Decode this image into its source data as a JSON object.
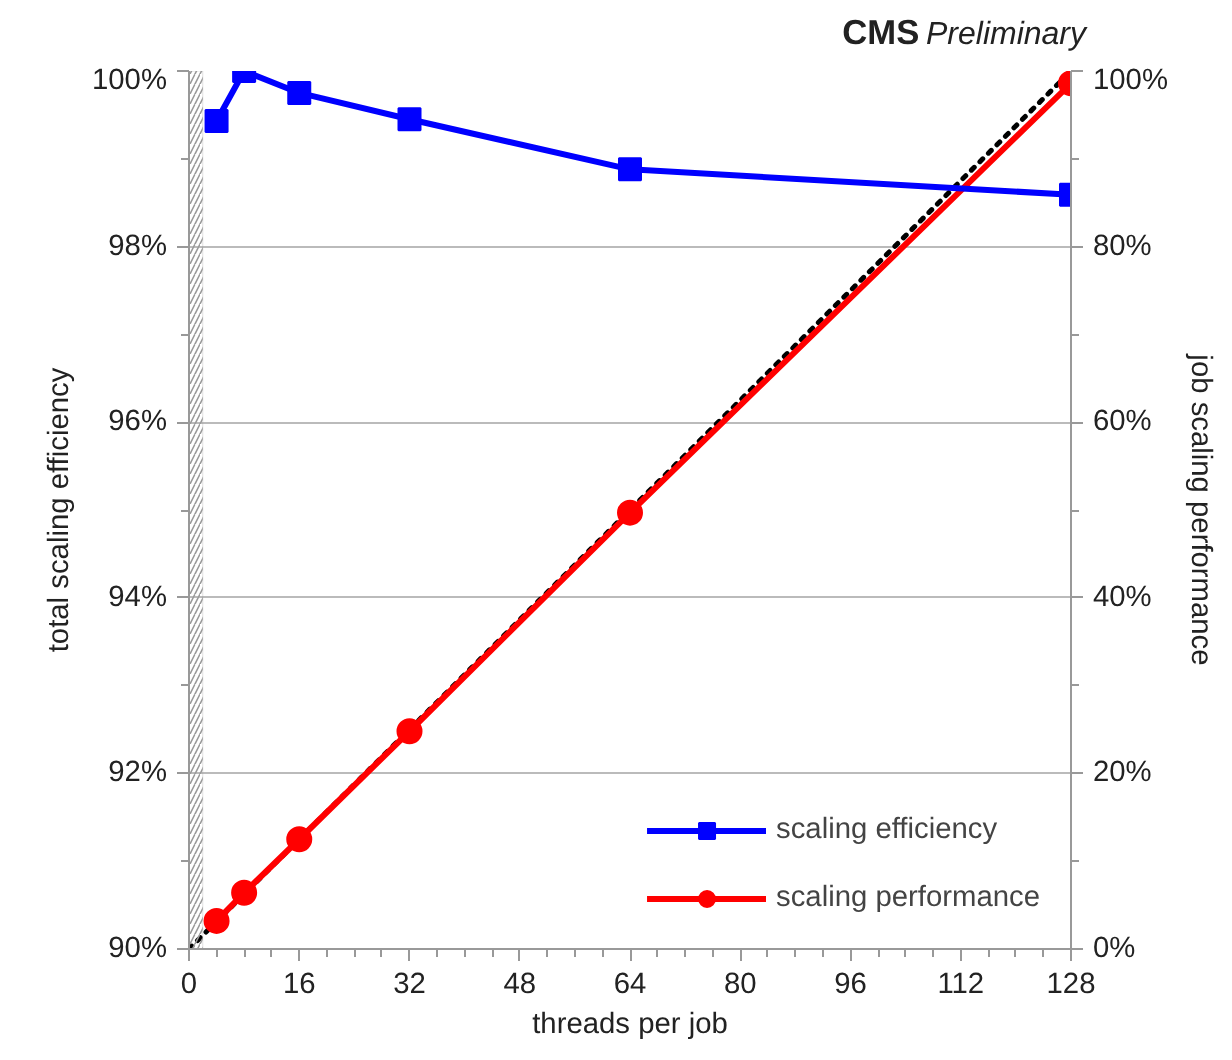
{
  "chart_data": {
    "type": "line",
    "xlabel": "threads per job",
    "ylabel": "total scaling efficiency",
    "y2label": "job scaling performance",
    "annotations": [
      "CMS",
      "Preliminary"
    ],
    "xlim": [
      0,
      128
    ],
    "xticks": [
      0,
      16,
      32,
      48,
      64,
      80,
      96,
      112,
      128
    ],
    "ylim": [
      90,
      100
    ],
    "yticks": [
      {
        "value": 90,
        "label": "90%"
      },
      {
        "value": 92,
        "label": "92%"
      },
      {
        "value": 94,
        "label": "94%"
      },
      {
        "value": 96,
        "label": "96%"
      },
      {
        "value": 98,
        "label": "98%"
      },
      {
        "value": 100,
        "label": "100%"
      }
    ],
    "y2lim": [
      0,
      100
    ],
    "y2ticks": [
      {
        "value": 0,
        "label": "0%"
      },
      {
        "value": 20,
        "label": "20%"
      },
      {
        "value": 40,
        "label": "40%"
      },
      {
        "value": 60,
        "label": "60%"
      },
      {
        "value": 80,
        "label": "80%"
      },
      {
        "value": 100,
        "label": "100%"
      }
    ],
    "grid": "y",
    "legend": "bottom right",
    "bands": [
      {
        "axis": "x",
        "from": 0,
        "to": 2,
        "color": "#999999"
      }
    ],
    "series": [
      {
        "name": "scaling efficiency",
        "color": "#0000ff",
        "marker": "square",
        "x": [
          4,
          8,
          16,
          32,
          64,
          128
        ],
        "values": [
          99.43,
          100,
          99.75,
          99.45,
          98.88,
          98.59
        ]
      },
      {
        "name": "scaling performance",
        "color": "#ff0000",
        "marker": "circle",
        "axis": "y2",
        "x": [
          4,
          8,
          16,
          32,
          64,
          128
        ],
        "values": [
          3.2,
          6.4,
          12.5,
          24.8,
          49.7,
          98.6
        ]
      },
      {
        "color": "#000000",
        "marker": "none",
        "line_style": "dotted",
        "axis": "y2",
        "x": [
          0,
          128
        ],
        "values": [
          0,
          100
        ]
      }
    ]
  }
}
